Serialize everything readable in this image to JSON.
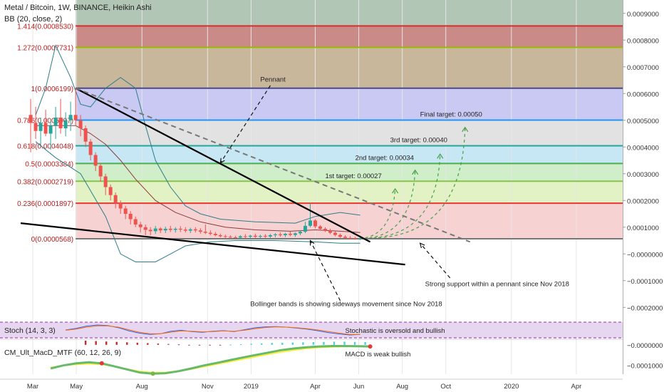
{
  "header": {
    "title": "Metal / Bitcoin, 1W, BINANCE, Heikin Ashi",
    "bb": "BB (20, close, 2)"
  },
  "chart_data": {
    "type": "candlestick",
    "symbol": "Metal / Bitcoin",
    "timeframe": "1W",
    "exchange": "BINANCE",
    "candle_style": "Heikin Ashi",
    "ylim": [
      -0.00025,
      0.00095
    ],
    "y_ticks": [
      "0.0009000",
      "0.0008000",
      "0.0007000",
      "0.0006000",
      "0.0005000",
      "0.0004000",
      "0.0003000",
      "0.0002000",
      "0.0001000",
      "−0.0000000",
      "−0.0001000",
      "−0.0002000"
    ],
    "y_tick_values": [
      0.0009,
      0.0008,
      0.0007,
      0.0006,
      0.0005,
      0.0004,
      0.0003,
      0.0002,
      0.0001,
      0,
      -0.0001,
      -0.0002
    ],
    "x_ticks": [
      "Mar",
      "May",
      "Aug",
      "Nov",
      "2019",
      "Apr",
      "Jun",
      "Aug",
      "Oct",
      "2020",
      "Apr"
    ],
    "x_tick_values": [
      "2018-03",
      "2018-05",
      "2018-08",
      "2018-11",
      "2019-01",
      "2019-04",
      "2019-06",
      "2019-08",
      "2019-10",
      "2020-01",
      "2020-04"
    ],
    "fib_levels": [
      {
        "label": "1.414(0.0008530)",
        "value": 0.000853,
        "color": "#d32f2f",
        "band": "#c98a88"
      },
      {
        "label": "1.272(0.0007731)",
        "value": 0.0007731,
        "color": "#9ab800",
        "band": "#c9b79b"
      },
      {
        "label": "1(0.0006199)",
        "value": 0.0006199,
        "color": "#4a4a8a",
        "band": "#c9c9f4"
      },
      {
        "label": "0.786(0.0005007)",
        "value": 0.0005007,
        "color": "#2196f3",
        "band": "#e2e2e2"
      },
      {
        "label": "0.618(0.0004048)",
        "value": 0.0004048,
        "color": "#26a69a",
        "band": "#c7e7f4"
      },
      {
        "label": "0.5(0.0003384)",
        "value": 0.0003384,
        "color": "#4caf50",
        "band": "#cfeec9"
      },
      {
        "label": "0.382(0.0002719)",
        "value": 0.0002719,
        "color": "#8bc34a",
        "band": "#e3f2c4"
      },
      {
        "label": "0.236(0.0001897)",
        "value": 0.0001897,
        "color": "#e53935",
        "band": "#f6f2c4"
      },
      {
        "label": "0(0.0000568)",
        "value": 5.68e-05,
        "color": "#777777",
        "band": "#f7d2d2"
      }
    ],
    "top_band_color": "#b2c6b5",
    "candles": [
      {
        "date": "2018-02-26",
        "open": 0.00052,
        "high": 0.00058,
        "low": 0.00038,
        "close": 0.00049
      },
      {
        "date": "2018-03-05",
        "open": 0.00049,
        "high": 0.00055,
        "low": 0.00043,
        "close": 0.00046
      },
      {
        "date": "2018-03-12",
        "open": 0.00046,
        "high": 0.00051,
        "low": 0.00041,
        "close": 0.00049
      },
      {
        "date": "2018-03-19",
        "open": 0.00049,
        "high": 0.00054,
        "low": 0.00044,
        "close": 0.00045
      },
      {
        "date": "2018-03-26",
        "open": 0.00045,
        "high": 0.0005,
        "low": 0.00039,
        "close": 0.00048
      },
      {
        "date": "2018-04-02",
        "open": 0.00048,
        "high": 0.00055,
        "low": 0.00043,
        "close": 0.00051
      },
      {
        "date": "2018-04-09",
        "open": 0.00051,
        "high": 0.00058,
        "low": 0.00045,
        "close": 0.00047
      },
      {
        "date": "2018-04-16",
        "open": 0.00047,
        "high": 0.00053,
        "low": 0.00044,
        "close": 0.0005
      },
      {
        "date": "2018-04-23",
        "open": 0.0005,
        "high": 0.00057,
        "low": 0.00046,
        "close": 0.00052
      },
      {
        "date": "2018-04-30",
        "open": 0.00052,
        "high": 0.00062,
        "low": 0.00048,
        "close": 0.0005
      },
      {
        "date": "2018-05-07",
        "open": 0.0005,
        "high": 0.00052,
        "low": 0.00044,
        "close": 0.00047
      },
      {
        "date": "2018-05-14",
        "open": 0.00047,
        "high": 0.00048,
        "low": 0.0004,
        "close": 0.00042
      },
      {
        "date": "2018-05-21",
        "open": 0.00042,
        "high": 0.00043,
        "low": 0.00035,
        "close": 0.00037
      },
      {
        "date": "2018-05-28",
        "open": 0.00037,
        "high": 0.00038,
        "low": 0.00031,
        "close": 0.00033
      },
      {
        "date": "2018-06-04",
        "open": 0.00033,
        "high": 0.00034,
        "low": 0.00027,
        "close": 0.00029
      },
      {
        "date": "2018-06-11",
        "open": 0.00029,
        "high": 0.0003,
        "low": 0.00022,
        "close": 0.00025
      },
      {
        "date": "2018-06-18",
        "open": 0.00025,
        "high": 0.00026,
        "low": 0.0002,
        "close": 0.00022
      },
      {
        "date": "2018-06-25",
        "open": 0.00022,
        "high": 0.00023,
        "low": 0.00017,
        "close": 0.00019
      },
      {
        "date": "2018-07-02",
        "open": 0.00019,
        "high": 0.0002,
        "low": 0.00015,
        "close": 0.00017
      },
      {
        "date": "2018-07-09",
        "open": 0.00017,
        "high": 0.00018,
        "low": 0.00013,
        "close": 0.00015
      },
      {
        "date": "2018-07-16",
        "open": 0.00015,
        "high": 0.00016,
        "low": 0.00011,
        "close": 0.00013
      },
      {
        "date": "2018-07-23",
        "open": 0.00013,
        "high": 0.00014,
        "low": 0.0001,
        "close": 0.00011
      },
      {
        "date": "2018-07-30",
        "open": 0.00011,
        "high": 0.00012,
        "low": 8e-05,
        "close": 0.0001
      },
      {
        "date": "2018-08-06",
        "open": 0.0001,
        "high": 0.00011,
        "low": 7e-05,
        "close": 9e-05
      },
      {
        "date": "2018-08-13",
        "open": 9e-05,
        "high": 0.0001,
        "low": 7e-05,
        "close": 8.5e-05
      },
      {
        "date": "2018-08-20",
        "open": 8.5e-05,
        "high": 0.000105,
        "low": 7.5e-05,
        "close": 9.5e-05
      },
      {
        "date": "2018-08-27",
        "open": 9.5e-05,
        "high": 0.0001,
        "low": 7.8e-05,
        "close": 8.8e-05
      },
      {
        "date": "2018-09-03",
        "open": 8.8e-05,
        "high": 0.000102,
        "low": 7.8e-05,
        "close": 9.4e-05
      },
      {
        "date": "2018-09-10",
        "open": 9.4e-05,
        "high": 0.000105,
        "low": 8.2e-05,
        "close": 9e-05
      },
      {
        "date": "2018-09-17",
        "open": 9e-05,
        "high": 0.0001,
        "low": 8e-05,
        "close": 9.4e-05
      },
      {
        "date": "2018-09-24",
        "open": 9.4e-05,
        "high": 0.000104,
        "low": 8.2e-05,
        "close": 9.1e-05
      },
      {
        "date": "2018-10-01",
        "open": 9.1e-05,
        "high": 0.0001,
        "low": 8e-05,
        "close": 8.7e-05
      },
      {
        "date": "2018-10-08",
        "open": 8.7e-05,
        "high": 9.8e-05,
        "low": 7.8e-05,
        "close": 9.2e-05
      },
      {
        "date": "2018-10-15",
        "open": 9.2e-05,
        "high": 0.0001,
        "low": 8e-05,
        "close": 8.8e-05
      },
      {
        "date": "2018-10-22",
        "open": 8.8e-05,
        "high": 9.6e-05,
        "low": 7.6e-05,
        "close": 8.3e-05
      },
      {
        "date": "2018-10-29",
        "open": 8.3e-05,
        "high": 0.00011,
        "low": 7.4e-05,
        "close": 7.9e-05
      },
      {
        "date": "2018-11-05",
        "open": 7.9e-05,
        "high": 8.8e-05,
        "low": 7e-05,
        "close": 7.5e-05
      },
      {
        "date": "2018-11-12",
        "open": 7.5e-05,
        "high": 8.2e-05,
        "low": 6.6e-05,
        "close": 7e-05
      },
      {
        "date": "2018-11-19",
        "open": 7e-05,
        "high": 7.6e-05,
        "low": 6.2e-05,
        "close": 6.6e-05
      },
      {
        "date": "2018-11-26",
        "open": 6.6e-05,
        "high": 7.2e-05,
        "low": 6e-05,
        "close": 6.4e-05
      },
      {
        "date": "2018-12-03",
        "open": 6.4e-05,
        "high": 7e-05,
        "low": 5.8e-05,
        "close": 6.2e-05
      },
      {
        "date": "2018-12-10",
        "open": 6.2e-05,
        "high": 6.8e-05,
        "low": 5.6e-05,
        "close": 6.1e-05
      },
      {
        "date": "2018-12-17",
        "open": 6.1e-05,
        "high": 7e-05,
        "low": 5.6e-05,
        "close": 6.6e-05
      },
      {
        "date": "2018-12-24",
        "open": 6.6e-05,
        "high": 7.4e-05,
        "low": 5.8e-05,
        "close": 6.4e-05
      },
      {
        "date": "2018-12-31",
        "open": 6.4e-05,
        "high": 7.2e-05,
        "low": 5.8e-05,
        "close": 6.8e-05
      },
      {
        "date": "2019-01-07",
        "open": 6.8e-05,
        "high": 7.6e-05,
        "low": 6e-05,
        "close": 6.4e-05
      },
      {
        "date": "2019-01-14",
        "open": 6.4e-05,
        "high": 7.2e-05,
        "low": 5.8e-05,
        "close": 6.7e-05
      },
      {
        "date": "2019-01-21",
        "open": 6.7e-05,
        "high": 7.4e-05,
        "low": 6e-05,
        "close": 6.5e-05
      },
      {
        "date": "2019-01-28",
        "open": 6.5e-05,
        "high": 7.5e-05,
        "low": 6e-05,
        "close": 7e-05
      },
      {
        "date": "2019-02-04",
        "open": 7e-05,
        "high": 7.8e-05,
        "low": 6.2e-05,
        "close": 7.3e-05
      },
      {
        "date": "2019-02-11",
        "open": 7.3e-05,
        "high": 8e-05,
        "low": 6.4e-05,
        "close": 7e-05
      },
      {
        "date": "2019-02-18",
        "open": 7e-05,
        "high": 7.9e-05,
        "low": 6.3e-05,
        "close": 7.5e-05
      },
      {
        "date": "2019-02-25",
        "open": 7.5e-05,
        "high": 8.4e-05,
        "low": 6.6e-05,
        "close": 7.1e-05
      },
      {
        "date": "2019-03-04",
        "open": 7.1e-05,
        "high": 8e-05,
        "low": 6.4e-05,
        "close": 7.7e-05
      },
      {
        "date": "2019-03-11",
        "open": 7.7e-05,
        "high": 8.8e-05,
        "low": 7e-05,
        "close": 8.3e-05
      },
      {
        "date": "2019-03-18",
        "open": 8.3e-05,
        "high": 0.00012,
        "low": 7.8e-05,
        "close": 0.000105
      },
      {
        "date": "2019-03-25",
        "open": 0.000105,
        "high": 0.00019,
        "low": 0.0001,
        "close": 0.000125
      },
      {
        "date": "2019-04-01",
        "open": 0.000125,
        "high": 0.00013,
        "low": 9.5e-05,
        "close": 0.000103
      },
      {
        "date": "2019-04-08",
        "open": 0.000103,
        "high": 0.000108,
        "low": 8.8e-05,
        "close": 9.4e-05
      },
      {
        "date": "2019-04-15",
        "open": 9.4e-05,
        "high": 0.0001,
        "low": 8.2e-05,
        "close": 8.8e-05
      },
      {
        "date": "2019-04-22",
        "open": 8.8e-05,
        "high": 9.4e-05,
        "low": 7.4e-05,
        "close": 7.9e-05
      },
      {
        "date": "2019-04-29",
        "open": 7.9e-05,
        "high": 8.6e-05,
        "low": 6.6e-05,
        "close": 7.1e-05
      },
      {
        "date": "2019-05-06",
        "open": 7.1e-05,
        "high": 7.6e-05,
        "low": 6e-05,
        "close": 6.4e-05
      },
      {
        "date": "2019-05-13",
        "open": 6.4e-05,
        "high": 7e-05,
        "low": 5.6e-05,
        "close": 6e-05
      },
      {
        "date": "2019-05-20",
        "open": 6e-05,
        "high": 6.7e-05,
        "low": 5.4e-05,
        "close": 5.8e-05
      },
      {
        "date": "2019-05-27",
        "open": 5.8e-05,
        "high": 6.4e-05,
        "low": 5.3e-05,
        "close": 5.6e-05
      },
      {
        "date": "2019-06-03",
        "open": 5.6e-05,
        "high": 6.3e-05,
        "low": 5.2e-05,
        "close": 5.8e-05
      }
    ],
    "bollinger": {
      "upper": [
        [
          0.00052,
          "2018-03-05"
        ],
        [
          0.00062,
          "2018-03-19"
        ],
        [
          0.00078,
          "2018-04-02"
        ],
        [
          0.00066,
          "2018-04-23"
        ],
        [
          0.00056,
          "2018-05-07"
        ],
        [
          0.00055,
          "2018-05-21"
        ],
        [
          0.00062,
          "2018-06-11"
        ],
        [
          0.00066,
          "2018-07-02"
        ],
        [
          0.00062,
          "2018-07-23"
        ],
        [
          0.00048,
          "2018-08-06"
        ],
        [
          0.00035,
          "2018-08-20"
        ],
        [
          0.00025,
          "2018-09-10"
        ],
        [
          0.00018,
          "2018-10-01"
        ],
        [
          0.00015,
          "2018-10-22"
        ],
        [
          0.00013,
          "2018-11-19"
        ],
        [
          0.00012,
          "2019-01-07"
        ],
        [
          0.000115,
          "2019-03-04"
        ],
        [
          0.00014,
          "2019-04-01"
        ],
        [
          0.000155,
          "2019-05-06"
        ],
        [
          0.000145,
          "2019-06-03"
        ]
      ],
      "basis": [
        [
          0.00048,
          "2018-03-05"
        ],
        [
          0.00048,
          "2018-04-02"
        ],
        [
          0.00048,
          "2018-04-30"
        ],
        [
          0.00045,
          "2018-05-21"
        ],
        [
          0.00041,
          "2018-06-11"
        ],
        [
          0.00035,
          "2018-07-02"
        ],
        [
          0.00028,
          "2018-07-23"
        ],
        [
          0.0002,
          "2018-08-20"
        ],
        [
          0.000155,
          "2018-09-17"
        ],
        [
          0.00012,
          "2018-10-22"
        ],
        [
          0.0001,
          "2018-11-26"
        ],
        [
          9e-05,
          "2019-01-07"
        ],
        [
          8.5e-05,
          "2019-02-25"
        ],
        [
          9e-05,
          "2019-04-01"
        ],
        [
          8.5e-05,
          "2019-05-06"
        ],
        [
          8e-05,
          "2019-06-03"
        ]
      ],
      "lower": [
        [
          0.00042,
          "2018-03-05"
        ],
        [
          0.00036,
          "2018-04-02"
        ],
        [
          0.0003,
          "2018-05-07"
        ],
        [
          0.00014,
          "2018-06-11"
        ],
        [
          0.0,
          "2018-07-02"
        ],
        [
          -3e-05,
          "2018-07-23"
        ],
        [
          -3e-05,
          "2018-08-20"
        ],
        [
          0.0,
          "2018-09-10"
        ],
        [
          3e-05,
          "2018-10-01"
        ],
        [
          4.5e-05,
          "2018-11-05"
        ],
        [
          5e-05,
          "2018-12-10"
        ],
        [
          5e-05,
          "2019-02-04"
        ],
        [
          4.5e-05,
          "2019-04-01"
        ],
        [
          4e-05,
          "2019-05-06"
        ],
        [
          4e-05,
          "2019-06-03"
        ]
      ]
    },
    "trendlines": [
      {
        "name": "pennant-upper",
        "from": [
          "2018-04-30",
          0.0006199
        ],
        "to": [
          "2019-06-17",
          4.5e-05
        ],
        "style": "solid",
        "color": "#000000"
      },
      {
        "name": "pennant-lower",
        "from": [
          "2018-02-12",
          0.000115
        ],
        "to": [
          "2019-08-05",
          -4e-05
        ],
        "style": "solid",
        "color": "#000000"
      },
      {
        "name": "pennant-dashed",
        "from": [
          "2018-04-30",
          0.0006199
        ],
        "to": [
          "2019-11-04",
          4.5e-05
        ],
        "style": "dashed",
        "color": "#777777"
      }
    ],
    "annotations": [
      {
        "text": "Pennant",
        "x": "2019-01-14",
        "y": 0.000645
      },
      {
        "text": "1st target: 0.00027",
        "x": "2019-04-15",
        "y": 0.000284
      },
      {
        "text": "2nd target: 0.00034",
        "x": "2019-05-27",
        "y": 0.000352
      },
      {
        "text": "3rd target: 0.00040",
        "x": "2019-07-15",
        "y": 0.000418
      },
      {
        "text": "Final target: 0.00050",
        "x": "2019-08-26",
        "y": 0.000514
      },
      {
        "text": "Bollinger bands is showing sideways movement since Nov 2018",
        "x": "2018-12-31",
        "y": -0.000195
      },
      {
        "text": "Strong support within a pennant since Nov 2018",
        "x": "2019-09-02",
        "y": -0.00012
      }
    ],
    "targets": [
      {
        "label": "1st target: 0.00027",
        "value": 0.00027
      },
      {
        "label": "2nd target: 0.00034",
        "value": 0.00034
      },
      {
        "label": "3rd target: 0.00040",
        "value": 0.0004
      },
      {
        "label": "Final target: 0.00050",
        "value": 0.0005
      }
    ],
    "stoch": {
      "label": "Stoch (14, 3, 3)",
      "note": "Stochastic is oversold and bullish",
      "k": [
        50,
        60,
        75,
        82,
        78,
        65,
        45,
        30,
        22,
        26,
        42,
        48,
        40,
        35,
        42,
        46,
        40,
        52,
        64,
        70,
        72,
        68,
        62,
        55,
        45,
        33,
        25,
        18,
        22
      ],
      "d": [
        48,
        56,
        68,
        76,
        76,
        68,
        52,
        36,
        26,
        26,
        36,
        44,
        42,
        38,
        40,
        44,
        42,
        48,
        58,
        66,
        70,
        68,
        64,
        58,
        50,
        40,
        30,
        22,
        22
      ]
    },
    "macd": {
      "label": "CM_Ult_MacD_MTF (60, 12, 26, 9)",
      "note": "MACD is weak bullish",
      "y_ticks": [
        "−0.0000000",
        "−0.0001000"
      ],
      "y_tick_values": [
        0,
        -0.0001
      ],
      "hist": [
        2e-05,
        1.8e-05,
        1.6e-05,
        1.4e-05,
        1.2e-05,
        1e-05,
        8e-06,
        6e-06,
        4e-06,
        2e-06,
        0.0,
        -2e-06,
        -2e-06,
        -1e-06,
        1e-06,
        3e-06,
        5e-06,
        7e-06,
        9e-06,
        1e-05,
        1.1e-05,
        1.2e-05,
        1.3e-05,
        1.4e-05,
        1.5e-05,
        1.5e-05,
        1.4e-05,
        1.3e-05
      ],
      "line": [
        -0.000115,
        -0.0001,
        -9e-05,
        -8.5e-05,
        -9e-05,
        -0.000105,
        -0.00012,
        -0.000135,
        -0.00014,
        -0.000138,
        -0.000128,
        -0.000115,
        -0.0001,
        -8.8e-05,
        -7.5e-05,
        -6.2e-05,
        -5e-05,
        -3.8e-05,
        -2.6e-05,
        -1.8e-05,
        -1.2e-05,
        -8e-06,
        -6e-06,
        -6e-06,
        -7e-06,
        -8e-06
      ],
      "signal": [
        -0.00011,
        -0.0001,
        -9.5e-05,
        -9.2e-05,
        -9.5e-05,
        -0.000105,
        -0.000118,
        -0.00013,
        -0.000135,
        -0.000134,
        -0.000128,
        -0.000118,
        -0.000106,
        -9.4e-05,
        -8.2e-05,
        -7e-05,
        -5.8e-05,
        -4.6e-05,
        -3.5e-05,
        -2.6e-05,
        -1.8e-05,
        -1.3e-05,
        -1e-05,
        -8e-06,
        -8e-06,
        -8e-06
      ]
    }
  }
}
